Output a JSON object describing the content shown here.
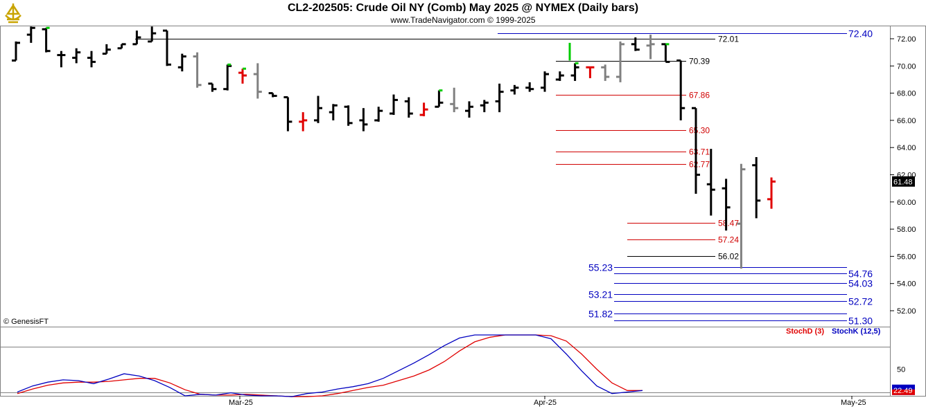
{
  "header": {
    "title": "CL2-202505:  Crude Oil NY (Comb) May 2025 @ NYMEX  (Daily bars)",
    "subtitle": "www.TradeNavigator.com © 1999-2025",
    "copyright": "© GenesisFT"
  },
  "colors": {
    "up_bar": "#000000",
    "down_bar": "#000000",
    "gray_bar": "#808080",
    "red_bar": "#e00000",
    "green_tick": "#00cc00",
    "level_black": "#000000",
    "level_red": "#d00000",
    "level_blue": "#0000c0",
    "stoch_d": "#e00000",
    "stoch_k": "#0000c0",
    "price_box": "#000000",
    "stoch_box": "#0000c0"
  },
  "chart_data": [
    {
      "type": "ohlc",
      "title": "CL2-202505:  Crude Oil NY (Comb) May 2025 @ NYMEX  (Daily bars)",
      "ylim": [
        50.6,
        73.2
      ],
      "y_ticks": [
        "52.00",
        "54.00",
        "56.00",
        "58.00",
        "60.00",
        "62.00",
        "64.00",
        "66.00",
        "68.00",
        "70.00",
        "72.00"
      ],
      "x_ticks": [
        "Mar-25",
        "Apr-25",
        "May-25"
      ],
      "last_price": "61.48",
      "bars": [
        {
          "o": 70.4,
          "h": 71.8,
          "l": 70.4,
          "c": 71.7,
          "s": "k"
        },
        {
          "o": 72.3,
          "h": 72.9,
          "l": 71.7,
          "c": 72.8,
          "s": "k"
        },
        {
          "o": 72.7,
          "h": 72.8,
          "l": 71.0,
          "c": 71.1,
          "s": "k",
          "g": true
        },
        {
          "o": 70.8,
          "h": 71.1,
          "l": 69.9,
          "c": 70.8,
          "s": "k"
        },
        {
          "o": 70.6,
          "h": 71.3,
          "l": 70.2,
          "c": 71.0,
          "s": "k"
        },
        {
          "o": 70.6,
          "h": 71.1,
          "l": 69.9,
          "c": 70.3,
          "s": "k"
        },
        {
          "o": 70.9,
          "h": 71.6,
          "l": 70.9,
          "c": 71.2,
          "s": "k"
        },
        {
          "o": 71.3,
          "h": 71.6,
          "l": 71.3,
          "c": 71.6,
          "s": "k"
        },
        {
          "o": 71.6,
          "h": 72.6,
          "l": 71.6,
          "c": 72.1,
          "s": "k"
        },
        {
          "o": 71.8,
          "h": 72.9,
          "l": 71.8,
          "c": 72.4,
          "s": "k"
        },
        {
          "o": 72.6,
          "h": 72.6,
          "l": 70.0,
          "c": 70.1,
          "s": "k"
        },
        {
          "o": 69.9,
          "h": 70.9,
          "l": 69.6,
          "c": 70.7,
          "s": "k"
        },
        {
          "o": 70.7,
          "h": 71.0,
          "l": 68.4,
          "c": 68.6,
          "s": "g"
        },
        {
          "o": 68.7,
          "h": 68.7,
          "l": 68.1,
          "c": 68.3,
          "s": "k"
        },
        {
          "o": 68.3,
          "h": 70.1,
          "l": 68.2,
          "c": 70.0,
          "s": "k",
          "g": true
        },
        {
          "o": 69.5,
          "h": 69.8,
          "l": 68.7,
          "c": 69.3,
          "s": "r",
          "g": true
        },
        {
          "o": 69.4,
          "h": 70.2,
          "l": 67.6,
          "c": 68.1,
          "s": "g"
        },
        {
          "o": 68.0,
          "h": 68.0,
          "l": 67.7,
          "c": 67.8,
          "s": "k"
        },
        {
          "o": 67.7,
          "h": 67.7,
          "l": 65.2,
          "c": 65.9,
          "s": "k"
        },
        {
          "o": 65.9,
          "h": 66.6,
          "l": 65.2,
          "c": 66.0,
          "s": "r"
        },
        {
          "o": 66.0,
          "h": 67.8,
          "l": 65.8,
          "c": 66.9,
          "s": "k"
        },
        {
          "o": 66.6,
          "h": 67.2,
          "l": 66.0,
          "c": 67.1,
          "s": "k"
        },
        {
          "o": 67.0,
          "h": 67.1,
          "l": 65.6,
          "c": 65.8,
          "s": "k"
        },
        {
          "o": 66.0,
          "h": 66.9,
          "l": 65.2,
          "c": 65.7,
          "s": "k"
        },
        {
          "o": 66.0,
          "h": 67.0,
          "l": 65.9,
          "c": 66.7,
          "s": "k"
        },
        {
          "o": 66.5,
          "h": 67.9,
          "l": 66.4,
          "c": 67.5,
          "s": "k"
        },
        {
          "o": 67.4,
          "h": 67.7,
          "l": 66.2,
          "c": 66.5,
          "s": "k"
        },
        {
          "o": 66.4,
          "h": 67.3,
          "l": 66.3,
          "c": 66.8,
          "s": "r"
        },
        {
          "o": 67.0,
          "h": 68.2,
          "l": 67.0,
          "c": 67.3,
          "s": "k",
          "g": true
        },
        {
          "o": 67.2,
          "h": 68.4,
          "l": 66.6,
          "c": 66.9,
          "s": "g"
        },
        {
          "o": 66.7,
          "h": 67.4,
          "l": 66.2,
          "c": 67.0,
          "s": "k"
        },
        {
          "o": 67.1,
          "h": 67.5,
          "l": 66.6,
          "c": 67.3,
          "s": "k"
        },
        {
          "o": 67.4,
          "h": 68.7,
          "l": 66.6,
          "c": 68.1,
          "s": "k"
        },
        {
          "o": 68.2,
          "h": 68.6,
          "l": 67.9,
          "c": 68.4,
          "s": "k"
        },
        {
          "o": 68.4,
          "h": 68.8,
          "l": 68.1,
          "c": 68.3,
          "s": "k"
        },
        {
          "o": 68.4,
          "h": 69.6,
          "l": 68.1,
          "c": 69.4,
          "s": "k"
        },
        {
          "o": 69.0,
          "h": 69.6,
          "l": 68.9,
          "c": 69.3,
          "s": "k"
        },
        {
          "o": 69.3,
          "h": 70.2,
          "l": 68.9,
          "c": 69.9,
          "s": "k",
          "g": true
        },
        {
          "o": 69.9,
          "h": 69.9,
          "l": 69.1,
          "c": 69.9,
          "s": "r"
        },
        {
          "o": 69.9,
          "h": 70.1,
          "l": 68.9,
          "c": 69.2,
          "s": "g"
        },
        {
          "o": 69.2,
          "h": 71.8,
          "l": 68.8,
          "c": 71.6,
          "s": "g"
        },
        {
          "o": 71.6,
          "h": 72.1,
          "l": 71.1,
          "c": 71.2,
          "s": "k"
        },
        {
          "o": 71.5,
          "h": 72.3,
          "l": 70.5,
          "c": 71.6,
          "s": "g"
        },
        {
          "o": 71.6,
          "h": 71.6,
          "l": 70.3,
          "c": 70.3,
          "s": "k",
          "g": true
        },
        {
          "o": 70.4,
          "h": 70.4,
          "l": 66.0,
          "c": 66.9,
          "s": "k"
        },
        {
          "o": 66.9,
          "h": 66.9,
          "l": 60.6,
          "c": 62.0,
          "s": "k"
        },
        {
          "o": 61.3,
          "h": 63.9,
          "l": 59.0,
          "c": 60.9,
          "s": "k"
        },
        {
          "o": 61.0,
          "h": 61.7,
          "l": 57.9,
          "c": 59.6,
          "s": "k"
        },
        {
          "o": 58.4,
          "h": 62.8,
          "l": 55.1,
          "c": 62.4,
          "s": "g"
        },
        {
          "o": 62.7,
          "h": 63.3,
          "l": 58.8,
          "c": 60.1,
          "s": "k"
        },
        {
          "o": 60.2,
          "h": 61.8,
          "l": 59.5,
          "c": 61.5,
          "s": "r"
        }
      ],
      "levels": [
        {
          "value": 72.01,
          "label": "72.01",
          "color": "level_black",
          "side": "right_near"
        },
        {
          "value": 70.39,
          "label": "70.39",
          "color": "level_black",
          "side": "right_near"
        },
        {
          "value": 67.86,
          "label": "67.86",
          "color": "level_red",
          "side": "right_near"
        },
        {
          "value": 65.3,
          "label": "65.30",
          "color": "level_red",
          "side": "right_near"
        },
        {
          "value": 63.71,
          "label": "63.71",
          "color": "level_red",
          "side": "right_near"
        },
        {
          "value": 62.77,
          "label": "62.77",
          "color": "level_red",
          "side": "right_near"
        },
        {
          "value": 58.47,
          "label": "58.47",
          "color": "level_red",
          "side": "right_far"
        },
        {
          "value": 57.24,
          "label": "57.24",
          "color": "level_red",
          "side": "right_far"
        },
        {
          "value": 56.02,
          "label": "56.02",
          "color": "level_black",
          "side": "right_far"
        }
      ],
      "projections": [
        {
          "value": 72.4,
          "label": "72.40",
          "side": "right"
        },
        {
          "value": 55.23,
          "label": "55.23",
          "side": "left"
        },
        {
          "value": 54.76,
          "label": "54.76",
          "side": "right"
        },
        {
          "value": 54.03,
          "label": "54.03",
          "side": "right"
        },
        {
          "value": 53.21,
          "label": "53.21",
          "side": "left"
        },
        {
          "value": 52.72,
          "label": "52.72",
          "side": "right"
        },
        {
          "value": 51.82,
          "label": "51.82",
          "side": "left"
        },
        {
          "value": 51.3,
          "label": "51.30",
          "side": "right"
        }
      ]
    },
    {
      "type": "line",
      "ylim": [
        15,
        105
      ],
      "y_ticks": [
        "50"
      ],
      "ref_lines": [
        80,
        20
      ],
      "last_value": "22.49",
      "series": [
        {
          "name": "StochD (3)",
          "color": "stoch_d",
          "values": [
            18,
            24,
            29,
            32,
            33,
            33,
            34,
            36,
            38,
            38,
            32,
            23,
            17,
            16,
            16,
            17,
            16,
            15,
            14,
            14,
            15,
            18,
            22,
            26,
            29,
            35,
            41,
            49,
            60,
            74,
            86,
            92,
            95,
            95,
            95,
            94,
            87,
            70,
            50,
            32,
            22,
            22
          ]
        },
        {
          "name": "StochK (12,5)",
          "color": "stoch_k",
          "values": [
            20,
            28,
            33,
            36,
            35,
            31,
            37,
            44,
            41,
            35,
            26,
            15,
            17,
            16,
            19,
            16,
            15,
            15,
            14,
            18,
            20,
            24,
            27,
            31,
            38,
            48,
            58,
            69,
            81,
            91,
            95,
            95,
            95,
            95,
            95,
            90,
            70,
            48,
            28,
            18,
            20,
            22
          ]
        }
      ]
    }
  ]
}
